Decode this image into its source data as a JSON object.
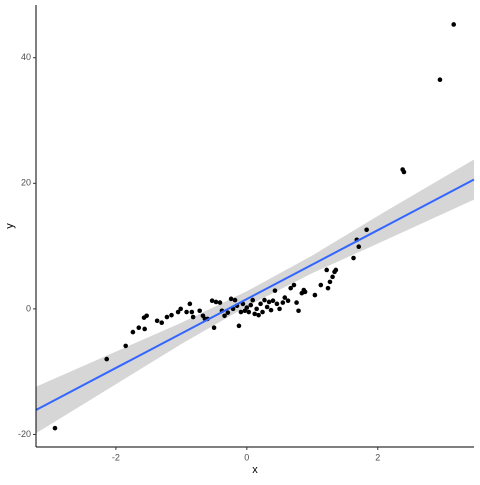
{
  "chart_data": {
    "type": "scatter",
    "x_label": "x",
    "y_label": "y",
    "xlim": [
      -3.22,
      3.47
    ],
    "ylim": [
      -22,
      48.4
    ],
    "xticks": [
      -2,
      0,
      2
    ],
    "yticks": [
      -20,
      0,
      20,
      40
    ],
    "grid": false,
    "series": [
      {
        "color": "#000000",
        "x": [
          -2.93,
          -2.14,
          -1.85,
          -1.74,
          -1.65,
          -1.57,
          -1.53,
          -1.56,
          -1.37,
          -1.3,
          -1.22,
          -1.15,
          -1.05,
          -1.01,
          -0.92,
          -0.87,
          -0.84,
          -0.82,
          -0.72,
          -0.67,
          -0.64,
          -0.6,
          -0.53,
          -0.5,
          -0.47,
          -0.41,
          -0.38,
          -0.34,
          -0.29,
          -0.24,
          -0.21,
          -0.18,
          -0.15,
          -0.12,
          -0.09,
          -0.06,
          -0.03,
          0,
          0.03,
          0.06,
          0.09,
          0.12,
          0.15,
          0.18,
          0.21,
          0.24,
          0.27,
          0.31,
          0.34,
          0.37,
          0.4,
          0.43,
          0.46,
          0.5,
          0.55,
          0.58,
          0.63,
          0.67,
          0.72,
          0.76,
          0.79,
          0.84,
          0.87,
          0.89,
          1.04,
          1.13,
          1.22,
          1.24,
          1.27,
          1.31,
          1.34,
          1.36,
          1.63,
          1.68,
          1.71,
          1.83,
          2.38,
          2.4,
          2.95,
          3.16
        ],
        "values": [
          -19,
          -8,
          -5.9,
          -3.7,
          -3,
          -1.4,
          -1.1,
          -3.2,
          -1.9,
          -2.2,
          -1.3,
          -1,
          -0.5,
          0,
          -0.5,
          0.8,
          -0.5,
          -1.3,
          -0.3,
          -1.1,
          -1.6,
          -1.6,
          1.3,
          -3,
          1.1,
          1,
          -0.3,
          -1.1,
          -0.6,
          1.6,
          0,
          1.4,
          0.5,
          -2.7,
          -0.5,
          0.8,
          -0.3,
          0.2,
          -0.5,
          0.6,
          1.4,
          -0.8,
          0,
          -1,
          0.8,
          -0.5,
          1.4,
          0.3,
          1.1,
          -0.2,
          1.3,
          2.9,
          0.8,
          0,
          1,
          1.8,
          1.3,
          3.3,
          3.8,
          1,
          -0.3,
          2.5,
          3,
          2.7,
          2.2,
          3.8,
          6.2,
          3.3,
          4.3,
          5.1,
          5.9,
          6.2,
          8.1,
          11,
          9.9,
          12.6,
          22.2,
          21.8,
          36.5,
          45.3
        ]
      }
    ],
    "fit": {
      "color": "#3366ff",
      "x": [
        -3.22,
        3.47
      ],
      "y": [
        -16.1,
        20.6
      ]
    },
    "band": {
      "color": "#999999",
      "x": [
        -3.22,
        -2,
        -1,
        0,
        1,
        2,
        3.47
      ],
      "lower": [
        -19.8,
        -12,
        -5.6,
        0.4,
        5.7,
        10.4,
        17.4
      ],
      "upper": [
        -12.4,
        -6.8,
        -2.2,
        2.8,
        8.5,
        14.8,
        23.8
      ]
    }
  }
}
